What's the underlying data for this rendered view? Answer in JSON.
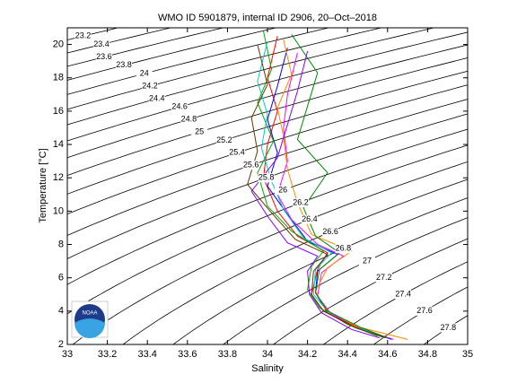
{
  "chart_data": {
    "type": "line",
    "title": "WMO ID 5901879, internal ID 2906, 20–Oct–2018",
    "x_label": "Salinity",
    "y_label": "Temperature [°C]",
    "logo_text": "NOAA",
    "xlim": [
      33,
      35
    ],
    "xticks": [
      33,
      33.2,
      33.4,
      33.6,
      33.8,
      34,
      34.2,
      34.4,
      34.6,
      34.8,
      35
    ],
    "ylim": [
      2,
      21
    ],
    "yticks": [
      2,
      4,
      6,
      8,
      10,
      12,
      14,
      16,
      18,
      20
    ],
    "contour_levels": [
      23.2,
      23.4,
      23.6,
      23.8,
      24,
      24.2,
      24.4,
      24.6,
      24.8,
      25,
      25.2,
      25.4,
      25.6,
      25.8,
      26,
      26.2,
      26.4,
      26.6,
      26.8,
      27,
      27.2,
      27.4,
      27.6,
      27.8
    ],
    "series": [
      {
        "color": "#ff0000",
        "x": [
          34.05,
          34.0,
          34.05,
          34.0,
          33.98,
          34.05,
          34.15,
          34.3,
          34.25,
          34.22,
          34.28,
          34.45,
          34.6
        ],
        "values": [
          20.5,
          18,
          16,
          14,
          12,
          10,
          8.5,
          7.5,
          6.5,
          5,
          4,
          3,
          2.4
        ]
      },
      {
        "color": "#0000ff",
        "x": [
          34.1,
          34.05,
          34.0,
          34.05,
          34.0,
          34.1,
          34.2,
          34.35,
          34.25,
          34.24,
          34.3,
          34.48,
          34.62
        ],
        "values": [
          19.8,
          17.5,
          15.5,
          13.5,
          11.5,
          9.8,
          8.2,
          7.4,
          6.4,
          5.1,
          3.9,
          2.9,
          2.3
        ]
      },
      {
        "color": "#00aa00",
        "x": [
          33.98,
          34.02,
          33.95,
          34.03,
          33.95,
          34.0,
          34.12,
          34.28,
          34.22,
          34.2,
          34.26,
          34.4,
          34.55
        ],
        "values": [
          20.8,
          18.5,
          16.5,
          14.2,
          12.3,
          10.3,
          8.8,
          7.6,
          6.7,
          5.3,
          4.2,
          3.2,
          2.5
        ]
      },
      {
        "color": "#ff00ff",
        "x": [
          34.15,
          34.1,
          34.08,
          34.1,
          34.05,
          34.12,
          34.25,
          34.38,
          34.27,
          34.25,
          34.32,
          34.5,
          34.63
        ],
        "values": [
          19.5,
          17,
          15,
          13,
          11,
          9.5,
          8,
          7.3,
          6.3,
          4.9,
          3.8,
          2.8,
          2.3
        ]
      },
      {
        "color": "#00cccc",
        "x": [
          34.0,
          33.95,
          34.0,
          33.97,
          34.02,
          34.08,
          34.18,
          34.32,
          34.24,
          34.23,
          34.3,
          34.46,
          34.58
        ],
        "values": [
          20.2,
          17.8,
          15.8,
          13.8,
          11.8,
          10.1,
          8.4,
          7.5,
          6.5,
          5.0,
          4.0,
          3.0,
          2.4
        ]
      },
      {
        "color": "#ff8800",
        "x": [
          34.08,
          34.12,
          34.05,
          34.08,
          34.1,
          34.15,
          34.22,
          34.42,
          34.3,
          34.24,
          34.29,
          34.44,
          34.7
        ],
        "values": [
          20.3,
          18.2,
          16.2,
          14.5,
          12.5,
          10.5,
          8.6,
          7.6,
          6.6,
          5.2,
          4.1,
          3.1,
          2.3
        ]
      },
      {
        "color": "#8800ff",
        "x": [
          34.2,
          34.15,
          34.1,
          34.05,
          33.92,
          34.0,
          34.1,
          34.25,
          34.2,
          34.21,
          34.27,
          34.42,
          34.56
        ],
        "values": [
          19.6,
          17.2,
          15.2,
          13.2,
          11.2,
          9.7,
          8.1,
          7.3,
          6.4,
          5.0,
          3.9,
          2.9,
          2.4
        ]
      },
      {
        "color": "#008800",
        "x": [
          34.12,
          34.25,
          34.2,
          34.15,
          34.3,
          34.18,
          34.24,
          34.36,
          34.26,
          34.24,
          34.3,
          34.47,
          34.6
        ],
        "values": [
          20.6,
          18.3,
          16.3,
          14.3,
          12.3,
          10.2,
          8.5,
          7.5,
          6.5,
          5.1,
          4.0,
          3.0,
          2.4
        ]
      },
      {
        "color": "#663300",
        "x": [
          33.95,
          34.0,
          33.92,
          33.95,
          33.9,
          34.02,
          34.14,
          34.3,
          34.23,
          34.22,
          34.28,
          34.44,
          34.59
        ],
        "values": [
          20.0,
          17.6,
          15.6,
          13.6,
          11.6,
          9.9,
          8.3,
          7.4,
          6.4,
          5.0,
          4.0,
          3.0,
          2.4
        ]
      }
    ]
  }
}
